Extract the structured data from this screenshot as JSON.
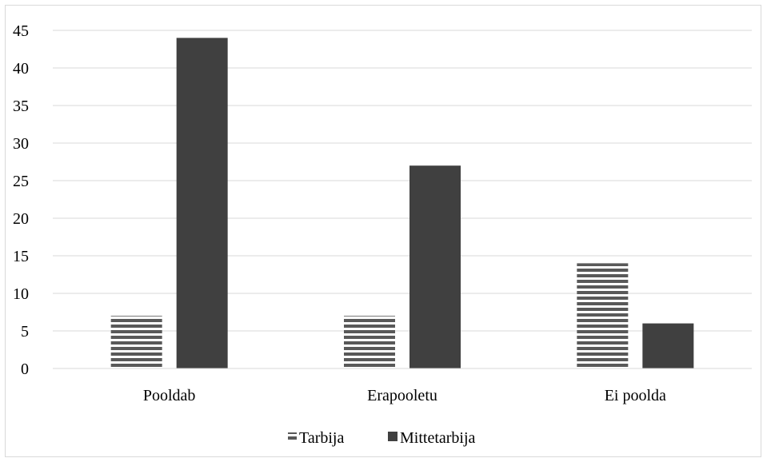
{
  "chart_data": {
    "type": "bar",
    "categories": [
      "Pooldab",
      "Erapooletu",
      "Ei poolda"
    ],
    "series": [
      {
        "name": "Tarbija",
        "values": [
          7,
          7,
          14
        ],
        "pattern": "horizontal-stripes",
        "color": "#595959"
      },
      {
        "name": "Mittetarbija",
        "values": [
          44,
          27,
          6
        ],
        "pattern": "solid",
        "color": "#404040"
      }
    ],
    "ylim": [
      0,
      45
    ],
    "yticks": [
      0,
      5,
      10,
      15,
      20,
      25,
      30,
      35,
      40,
      45
    ],
    "grid": true,
    "legend_position": "bottom-center",
    "gridline_color": "#d9d9d9"
  }
}
